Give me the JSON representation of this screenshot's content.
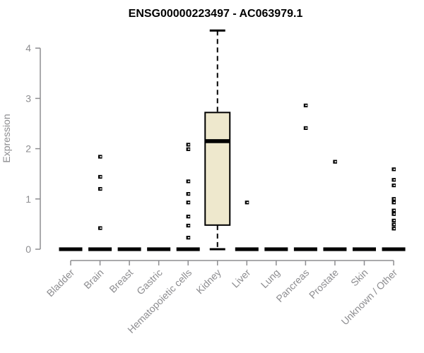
{
  "chart_data": {
    "type": "boxplot",
    "title": "ENSG00000223497 - AC063979.1",
    "ylabel": "Expression",
    "xlabel": "",
    "ylim": [
      0,
      4.4
    ],
    "yticks": [
      0,
      1,
      2,
      3,
      4
    ],
    "grid": false,
    "legend": null,
    "box_fill_color": "#EEE8CD",
    "box_line_color": "#000000",
    "axis_color": "#8d8d90",
    "title_color": "#000000",
    "categories": [
      "Bladder",
      "Brain",
      "Breast",
      "Gastric",
      "Hematopoietic cells",
      "Kidney",
      "Liver",
      "Lung",
      "Pancreas",
      "Prostate",
      "Skin",
      "Unknown / Other"
    ],
    "boxes": [
      {
        "category": "Bladder",
        "median": 0,
        "q1": 0,
        "q3": 0,
        "whisker_low": 0,
        "whisker_high": 0,
        "outliers": []
      },
      {
        "category": "Brain",
        "median": 0,
        "q1": 0,
        "q3": 0,
        "whisker_low": 0,
        "whisker_high": 0,
        "outliers": [
          1.84,
          1.44,
          1.2,
          0.42
        ]
      },
      {
        "category": "Breast",
        "median": 0,
        "q1": 0,
        "q3": 0,
        "whisker_low": 0,
        "whisker_high": 0,
        "outliers": []
      },
      {
        "category": "Gastric",
        "median": 0,
        "q1": 0,
        "q3": 0,
        "whisker_low": 0,
        "whisker_high": 0,
        "outliers": []
      },
      {
        "category": "Hematopoietic cells",
        "median": 0,
        "q1": 0,
        "q3": 0,
        "whisker_low": 0,
        "whisker_high": 0,
        "outliers": [
          2.08,
          1.99,
          1.35,
          1.1,
          0.93,
          0.65,
          0.47,
          0.23
        ]
      },
      {
        "category": "Kidney",
        "median": 2.15,
        "q1": 0.48,
        "q3": 2.72,
        "whisker_low": 0,
        "whisker_high": 4.35,
        "outliers": []
      },
      {
        "category": "Liver",
        "median": 0,
        "q1": 0,
        "q3": 0,
        "whisker_low": 0,
        "whisker_high": 0,
        "outliers": [
          0.93
        ]
      },
      {
        "category": "Lung",
        "median": 0,
        "q1": 0,
        "q3": 0,
        "whisker_low": 0,
        "whisker_high": 0,
        "outliers": []
      },
      {
        "category": "Pancreas",
        "median": 0,
        "q1": 0,
        "q3": 0,
        "whisker_low": 0,
        "whisker_high": 0,
        "outliers": [
          2.86,
          2.41
        ]
      },
      {
        "category": "Prostate",
        "median": 0,
        "q1": 0,
        "q3": 0,
        "whisker_low": 0,
        "whisker_high": 0,
        "outliers": [
          1.74
        ]
      },
      {
        "category": "Skin",
        "median": 0,
        "q1": 0,
        "q3": 0,
        "whisker_low": 0,
        "whisker_high": 0,
        "outliers": []
      },
      {
        "category": "Unknown / Other",
        "median": 0,
        "q1": 0,
        "q3": 0,
        "whisker_low": 0,
        "whisker_high": 0,
        "outliers": [
          1.59,
          1.38,
          1.27,
          1.0,
          0.93,
          0.77,
          0.7,
          0.57,
          0.49,
          0.41
        ]
      }
    ]
  }
}
